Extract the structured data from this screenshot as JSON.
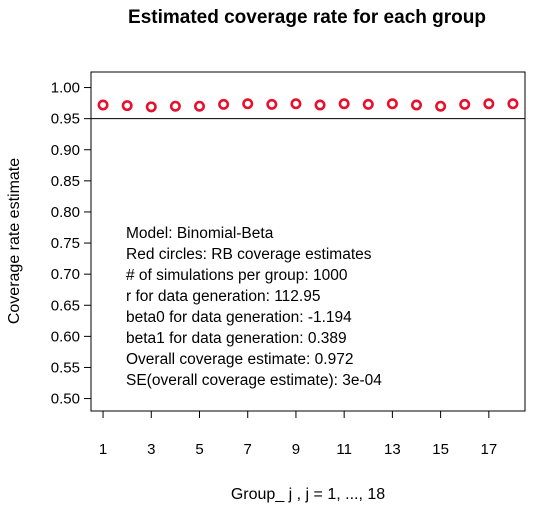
{
  "chart_data": {
    "type": "scatter",
    "title": "Estimated coverage rate for each group",
    "xlabel": "Group_ j ,  j = 1, ..., 18",
    "ylabel": "Coverage rate estimate",
    "x": [
      1,
      2,
      3,
      4,
      5,
      6,
      7,
      8,
      9,
      10,
      11,
      12,
      13,
      14,
      15,
      16,
      17,
      18
    ],
    "y": [
      0.972,
      0.971,
      0.969,
      0.97,
      0.97,
      0.973,
      0.974,
      0.973,
      0.974,
      0.972,
      0.974,
      0.973,
      0.974,
      0.972,
      0.97,
      0.973,
      0.974,
      0.974
    ],
    "xlim": [
      0.5,
      18.5
    ],
    "ylim": [
      0.48,
      1.025
    ],
    "x_ticks": [
      1,
      3,
      5,
      7,
      9,
      11,
      13,
      15,
      17
    ],
    "y_ticks": [
      0.5,
      0.55,
      0.6,
      0.65,
      0.7,
      0.75,
      0.8,
      0.85,
      0.9,
      0.95,
      1.0
    ],
    "y_tick_labels": [
      "0.50",
      "0.55",
      "0.60",
      "0.65",
      "0.70",
      "0.75",
      "0.80",
      "0.85",
      "0.90",
      "0.95",
      "1.00"
    ],
    "reference_line": 0.95,
    "marker": "open-circle",
    "marker_color": "#e8112d",
    "grid": false,
    "annotations": [
      "Model:  Binomial-Beta",
      "Red circles: RB coverage estimates",
      "# of simulations per group:  1000",
      "r for data generation:  112.95",
      "beta0 for data generation: -1.194",
      "beta1 for data generation: 0.389",
      "Overall coverage estimate:  0.972",
      "SE(overall coverage estimate):  3e-04"
    ]
  }
}
